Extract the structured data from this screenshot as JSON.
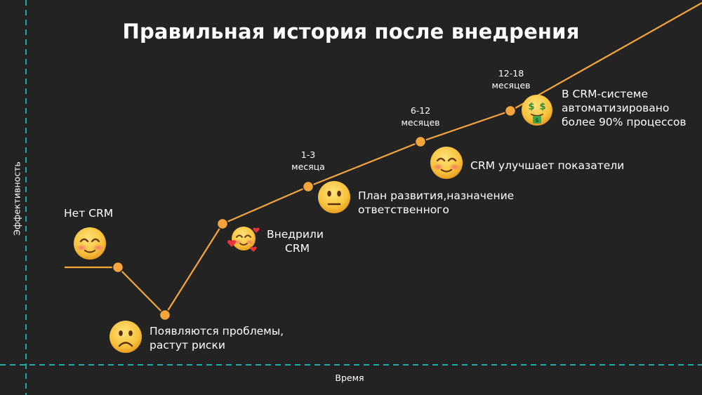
{
  "title": "Правильная история после внедрения",
  "axes": {
    "y_label": "Эффективность",
    "x_label": "Время"
  },
  "stages": [
    {
      "id": "no-crm",
      "label": "Нет CRM",
      "emoji": "smiling-face-icon"
    },
    {
      "id": "problems",
      "label_line1": "Появляются проблемы,",
      "label_line2": "растут риски",
      "emoji": "frowning-face-icon"
    },
    {
      "id": "implemented",
      "label_line1": "Внедрили",
      "label_line2": "CRM",
      "emoji": "smiling-face-with-hearts-icon"
    },
    {
      "id": "plan",
      "period_line1": "1-3",
      "period_line2": "месяца",
      "label_line1": "План развития,назначение",
      "label_line2": "ответственного",
      "emoji": "neutral-face-icon"
    },
    {
      "id": "improves",
      "period_line1": "6-12",
      "period_line2": "месяцев",
      "label_line1": "CRM улучшает показатели",
      "emoji": "smiling-face-icon"
    },
    {
      "id": "automated",
      "period_line1": "12-18",
      "period_line2": "месяцев",
      "label_line1": "В CRM-системе",
      "label_line2": "автоматизировано",
      "label_line3": "более 90% процессов",
      "emoji": "money-mouth-face-icon"
    }
  ],
  "colors": {
    "background": "#232323",
    "line": "#F5A53C",
    "axis": "#1FA6A8",
    "emoji_face": "#F7C33C"
  }
}
